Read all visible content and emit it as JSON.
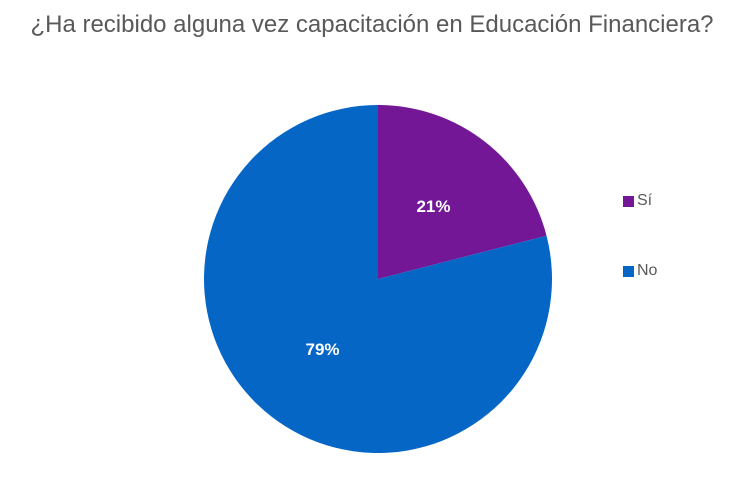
{
  "chart_data": {
    "type": "pie",
    "title": "¿Ha recibido alguna vez capacitación en Educación Financiera?",
    "categories": [
      "Sí",
      "No"
    ],
    "values": [
      21,
      79
    ],
    "data_labels": [
      "21%",
      "79%"
    ],
    "colors": [
      "#731797",
      "#0566C6"
    ],
    "legend_position": "right",
    "start_angle_deg": 0,
    "direction": "clockwise"
  }
}
